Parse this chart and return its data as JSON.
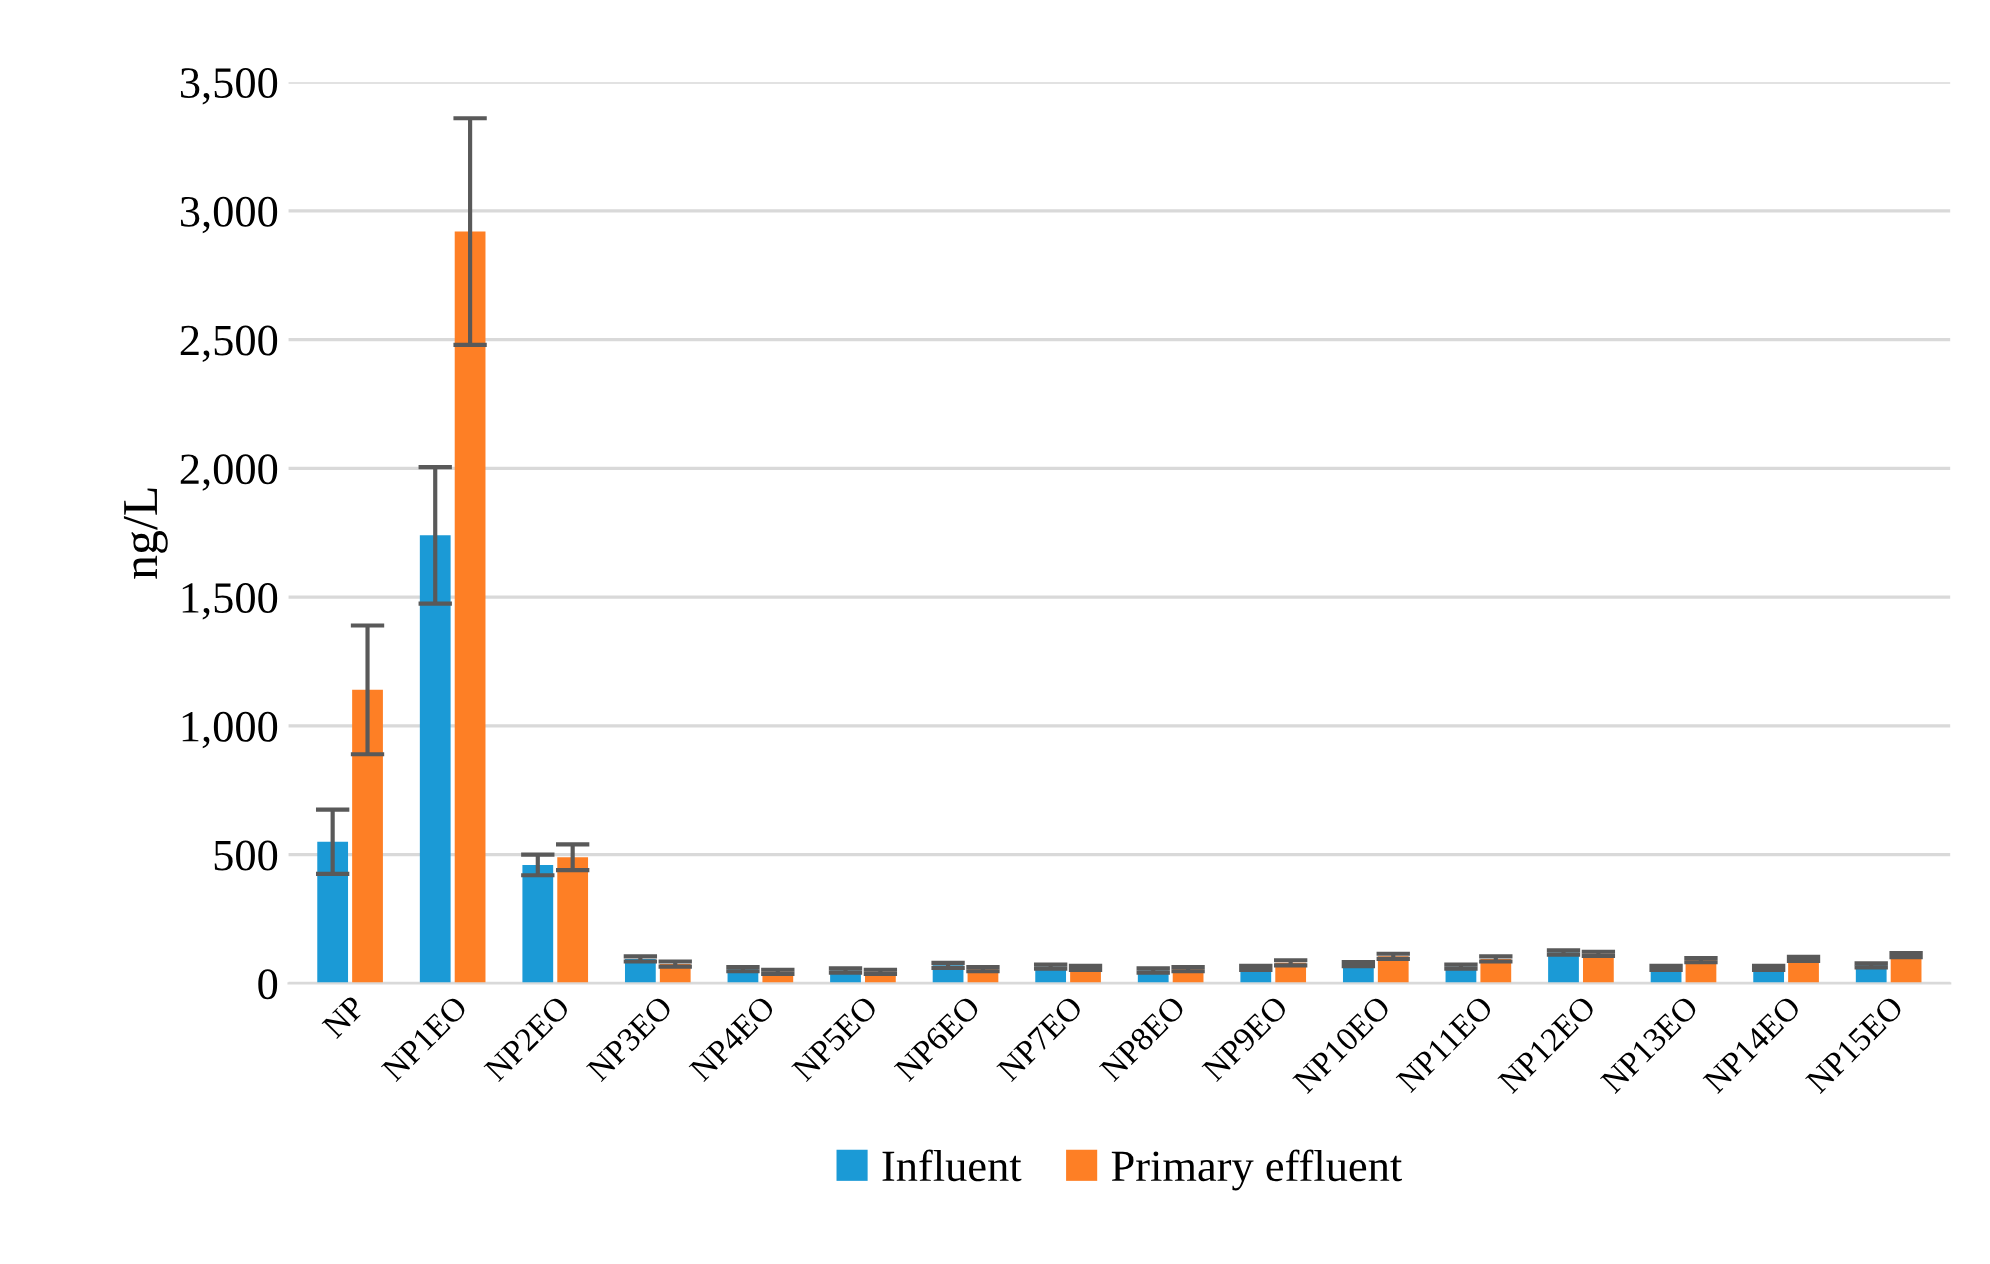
{
  "chart_data": {
    "type": "bar",
    "ylabel": "ng/L",
    "categories": [
      "NP",
      "NP1EO",
      "NP2EO",
      "NP3EO",
      "NP4EO",
      "NP5EO",
      "NP6EO",
      "NP7EO",
      "NP8EO",
      "NP9EO",
      "NP10EO",
      "NP11EO",
      "NP12EO",
      "NP13EO",
      "NP14EO",
      "NP15EO"
    ],
    "series": [
      {
        "name": "Influent",
        "color": "#1b9ad6",
        "values": [
          550,
          1740,
          460,
          95,
          55,
          50,
          70,
          65,
          50,
          60,
          75,
          65,
          120,
          60,
          60,
          70
        ],
        "errors": [
          125,
          265,
          40,
          10,
          8,
          8,
          10,
          8,
          8,
          8,
          8,
          8,
          8,
          8,
          8,
          8
        ]
      },
      {
        "name": "Primary effluent",
        "color": "#fe7f25",
        "values": [
          1140,
          2920,
          490,
          75,
          45,
          45,
          55,
          60,
          55,
          80,
          105,
          95,
          115,
          90,
          95,
          110
        ],
        "errors": [
          250,
          440,
          50,
          10,
          8,
          8,
          8,
          8,
          8,
          10,
          10,
          10,
          8,
          8,
          8,
          8
        ]
      }
    ],
    "ylim": [
      0,
      3500
    ],
    "yticks": [
      {
        "value": 0,
        "label": "0"
      },
      {
        "value": 500,
        "label": "500"
      },
      {
        "value": 1000,
        "label": "1,000"
      },
      {
        "value": 1500,
        "label": "1,500"
      },
      {
        "value": 2000,
        "label": "2,000"
      },
      {
        "value": 2500,
        "label": "2,500"
      },
      {
        "value": 3000,
        "label": "3,000"
      },
      {
        "value": 3500,
        "label": "3,500"
      }
    ],
    "grid": "y",
    "legend": "bottom"
  }
}
